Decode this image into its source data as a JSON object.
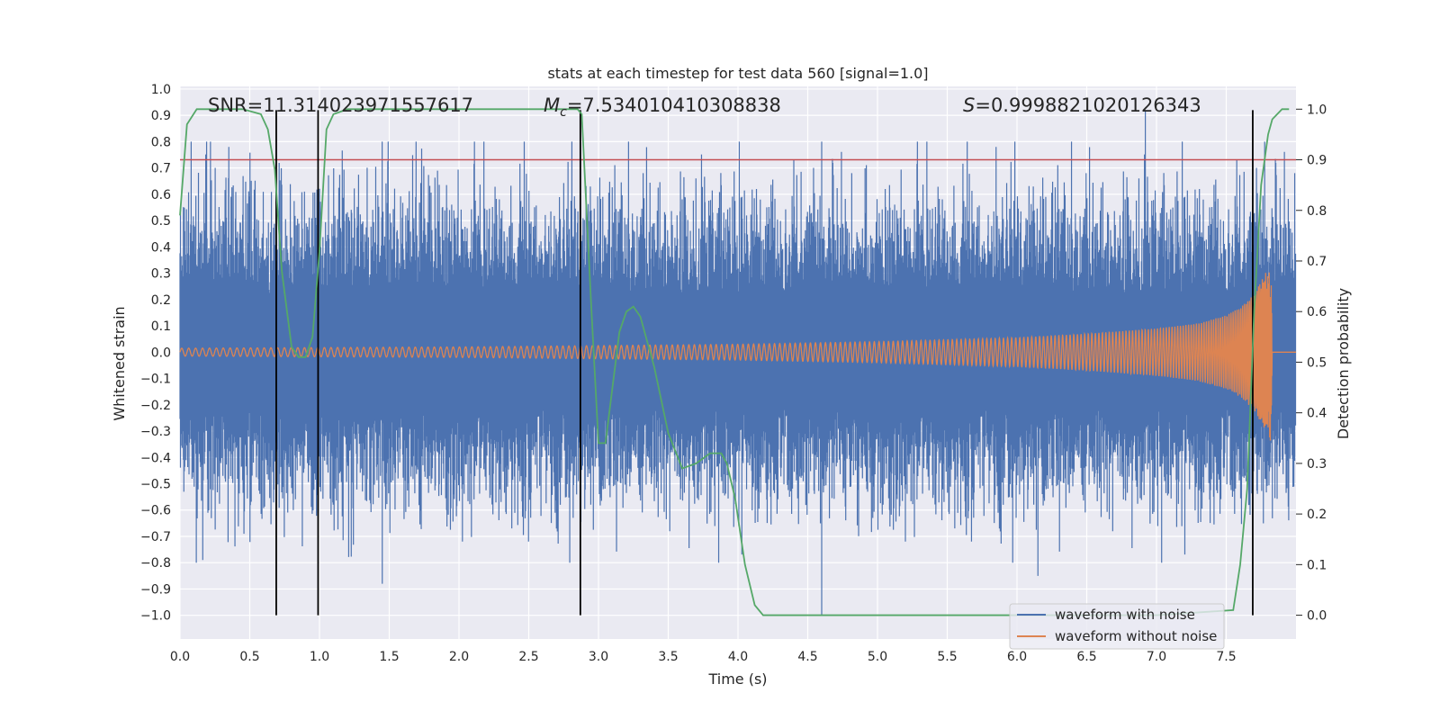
{
  "chart_data": {
    "type": "line",
    "title": "stats at each timestep for test data 560 [signal=1.0]",
    "xlabel": "Time (s)",
    "ylabel": "Whitened strain",
    "y2label": "Detection probability",
    "xlim": [
      0.0,
      8.0
    ],
    "ylim": [
      -1.09,
      1.01
    ],
    "y2lim": [
      -0.047,
      1.045
    ],
    "x_ticks": [
      0.0,
      0.5,
      1.0,
      1.5,
      2.0,
      2.5,
      3.0,
      3.5,
      4.0,
      4.5,
      5.0,
      5.5,
      6.0,
      6.5,
      7.0,
      7.5
    ],
    "y_ticks": [
      1.0,
      0.9,
      0.8,
      0.7,
      0.6,
      0.5,
      0.4,
      0.3,
      0.2,
      0.1,
      0.0,
      -0.1,
      -0.2,
      -0.3,
      -0.4,
      -0.5,
      -0.6,
      -0.7,
      -0.8,
      -0.9,
      -1.0
    ],
    "y2_ticks": [
      1.0,
      0.9,
      0.8,
      0.7,
      0.6,
      0.5,
      0.4,
      0.3,
      0.2,
      0.1,
      0.0
    ],
    "annotations": {
      "snr": "SNR=11.314023971557617",
      "mc_symbol": "M",
      "mc_sub": "c",
      "mc_value": "=7.534010410308838",
      "s_symbol": "S",
      "s_value": "=0.9998821020126343"
    },
    "legend": {
      "location": "lower-right",
      "entries": [
        "waveform with noise",
        "waveform without noise"
      ]
    },
    "colors": {
      "noise": "#4c72b0",
      "signal": "#dd8452",
      "probability": "#55a868",
      "threshold": "#c44e52",
      "markers": "#000000",
      "background": "#eaeaf2",
      "grid": "#ffffff"
    },
    "series": [
      {
        "name": "waveform with noise",
        "axis": "left",
        "description": "dense noisy strain, roughly within [-0.7, 0.7] with spikes",
        "notable_peaks": [
          {
            "x": 6.92,
            "y": 0.92
          },
          {
            "x": 4.6,
            "y": -1.0
          },
          {
            "x": 1.45,
            "y": -0.88
          },
          {
            "x": 6.15,
            "y": -0.85
          },
          {
            "x": 0.35,
            "y": 0.78
          },
          {
            "x": 5.85,
            "y": 0.78
          }
        ]
      },
      {
        "name": "waveform without noise",
        "axis": "left",
        "envelope_x": [
          0.0,
          2.0,
          4.0,
          5.0,
          6.0,
          6.5,
          7.0,
          7.3,
          7.5,
          7.6,
          7.7,
          7.78,
          7.82,
          7.83,
          8.0
        ],
        "envelope_y": [
          0.015,
          0.02,
          0.03,
          0.04,
          0.055,
          0.07,
          0.09,
          0.11,
          0.14,
          0.17,
          0.22,
          0.3,
          0.34,
          0.0,
          0.0
        ]
      },
      {
        "name": "detection probability",
        "axis": "right",
        "x": [
          0.0,
          0.05,
          0.12,
          0.2,
          0.3,
          0.45,
          0.58,
          0.63,
          0.68,
          0.73,
          0.8,
          0.85,
          0.9,
          0.95,
          1.0,
          1.05,
          1.1,
          1.2,
          1.5,
          2.0,
          2.85,
          2.88,
          2.95,
          3.0,
          3.05,
          3.1,
          3.15,
          3.2,
          3.25,
          3.3,
          3.4,
          3.5,
          3.6,
          3.7,
          3.8,
          3.88,
          3.92,
          3.98,
          4.05,
          4.12,
          4.18,
          4.3,
          5.0,
          6.0,
          7.0,
          7.55,
          7.6,
          7.65,
          7.7,
          7.75,
          7.8,
          7.83,
          7.9,
          7.95
        ],
        "y": [
          0.79,
          0.97,
          1.0,
          1.0,
          1.0,
          1.0,
          0.99,
          0.96,
          0.88,
          0.68,
          0.53,
          0.51,
          0.51,
          0.55,
          0.72,
          0.96,
          0.99,
          1.0,
          1.0,
          1.0,
          1.0,
          0.99,
          0.6,
          0.34,
          0.34,
          0.45,
          0.56,
          0.6,
          0.61,
          0.59,
          0.49,
          0.36,
          0.29,
          0.3,
          0.32,
          0.32,
          0.3,
          0.23,
          0.1,
          0.02,
          0.0,
          0.0,
          0.0,
          0.0,
          0.0,
          0.01,
          0.1,
          0.25,
          0.6,
          0.85,
          0.95,
          0.98,
          1.0,
          1.0
        ]
      },
      {
        "name": "threshold",
        "axis": "right",
        "y": 0.9
      }
    ],
    "vertical_markers_x": [
      0.69,
      0.99,
      2.87,
      7.69
    ],
    "vertical_markers_y_range": [
      -1.0,
      0.92
    ]
  }
}
